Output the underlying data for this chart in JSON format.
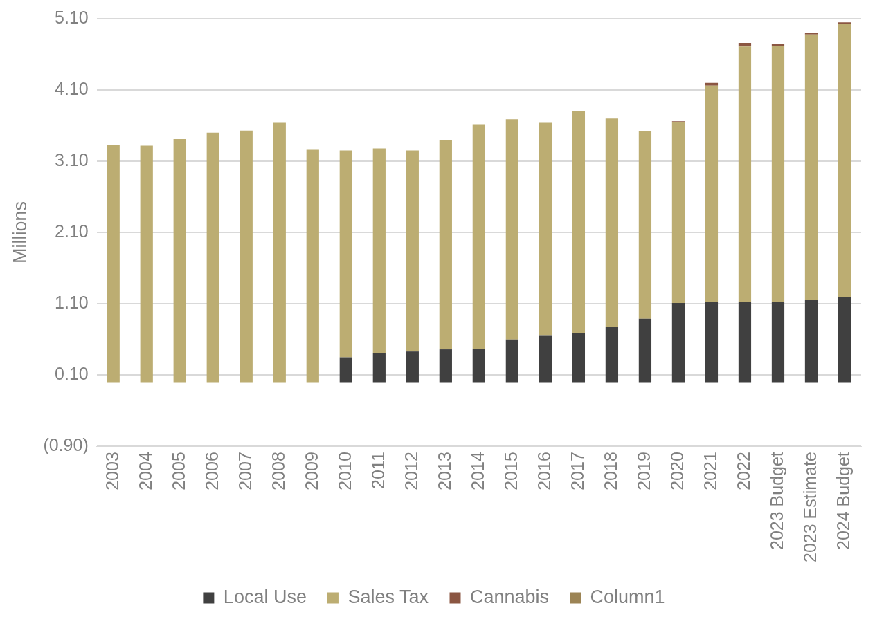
{
  "chart_data": {
    "type": "bar",
    "stacked": true,
    "ylabel": "Millions",
    "categories": [
      "2003",
      "2004",
      "2005",
      "2006",
      "2007",
      "2008",
      "2009",
      "2010",
      "2011",
      "2012",
      "2013",
      "2014",
      "2015",
      "2016",
      "2017",
      "2018",
      "2019",
      "2020",
      "2021",
      "2022",
      "2023 Budget",
      "2023 Estimate",
      "2024 Budget"
    ],
    "series": [
      {
        "name": "Local Use",
        "color": "#404040",
        "values": [
          null,
          null,
          null,
          null,
          null,
          null,
          null,
          0.35,
          0.41,
          0.43,
          0.46,
          0.47,
          0.6,
          0.65,
          0.69,
          0.77,
          0.89,
          1.11,
          1.12,
          1.12,
          1.12,
          1.16,
          1.19
        ]
      },
      {
        "name": "Sales Tax",
        "color": "#bcad72",
        "values": [
          3.33,
          3.32,
          3.41,
          3.5,
          3.53,
          3.64,
          3.26,
          2.9,
          2.87,
          2.82,
          2.94,
          3.15,
          3.09,
          2.99,
          3.11,
          2.93,
          2.63,
          2.54,
          3.04,
          3.59,
          3.6,
          3.72,
          3.84
        ]
      },
      {
        "name": "Cannabis",
        "color": "#8b5642",
        "values": [
          null,
          null,
          null,
          null,
          null,
          null,
          null,
          null,
          null,
          null,
          null,
          null,
          null,
          null,
          null,
          null,
          null,
          0.01,
          0.04,
          0.05,
          0.02,
          0.02,
          0.02
        ]
      },
      {
        "name": "Column1",
        "color": "#9c8455",
        "values": [
          null,
          null,
          null,
          null,
          null,
          null,
          null,
          null,
          null,
          null,
          null,
          null,
          null,
          null,
          null,
          null,
          null,
          null,
          null,
          null,
          null,
          null,
          null
        ]
      }
    ],
    "ylim": [
      -0.9,
      5.1
    ],
    "yticks": [
      {
        "value": -0.9,
        "label": "(0.90)"
      },
      {
        "value": 0.1,
        "label": "0.10"
      },
      {
        "value": 1.1,
        "label": "1.10"
      },
      {
        "value": 2.1,
        "label": "2.10"
      },
      {
        "value": 3.1,
        "label": "3.10"
      },
      {
        "value": 4.1,
        "label": "4.10"
      },
      {
        "value": 5.1,
        "label": "5.10"
      }
    ],
    "grid": "y",
    "legend": "bottom"
  }
}
